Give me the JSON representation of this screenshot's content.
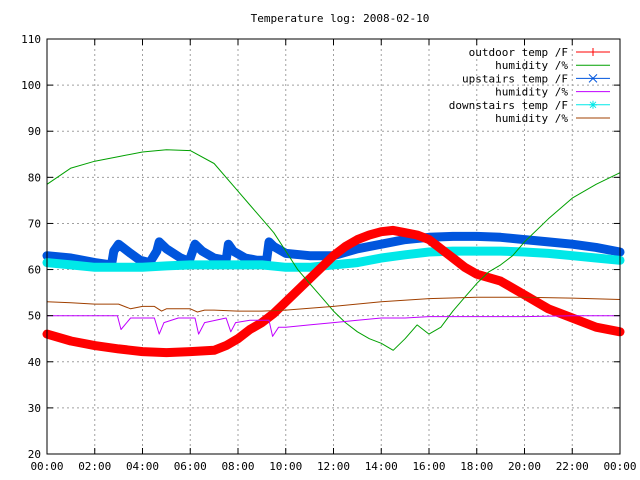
{
  "chart_data": {
    "type": "line",
    "title": "Temperature log: 2008-02-10",
    "xlabel": "",
    "ylabel": "",
    "ylim": [
      20,
      110
    ],
    "xlim_hours": [
      0,
      24
    ],
    "grid": true,
    "legend_position": "top-right",
    "y_ticks": [
      "20",
      "30",
      "40",
      "50",
      "60",
      "70",
      "80",
      "90",
      "100",
      "110"
    ],
    "x_ticks": [
      "00:00",
      "02:00",
      "04:00",
      "06:00",
      "08:00",
      "10:00",
      "12:00",
      "14:00",
      "16:00",
      "18:00",
      "20:00",
      "22:00",
      "00:00"
    ],
    "series": [
      {
        "name": "outdoor temp /F",
        "color": "#ff0000",
        "marker": "plus",
        "x": [
          0,
          1,
          2,
          3,
          4,
          5,
          6,
          7,
          7.5,
          8,
          8.5,
          9,
          9.5,
          10,
          10.5,
          11,
          11.5,
          12,
          12.5,
          13,
          13.5,
          14,
          14.5,
          15,
          15.5,
          16,
          16.5,
          17,
          17.5,
          18,
          19,
          20,
          21,
          22,
          23,
          24
        ],
        "y": [
          46,
          44.5,
          43.5,
          42.8,
          42.2,
          42,
          42.2,
          42.5,
          43.5,
          45,
          47,
          48.5,
          50.5,
          53,
          55.5,
          58,
          60.5,
          63,
          65,
          66.5,
          67.5,
          68.2,
          68.5,
          68,
          67.5,
          66.5,
          64.5,
          62.5,
          60.5,
          59,
          57.5,
          54.5,
          51.5,
          49.5,
          47.5,
          46.5
        ]
      },
      {
        "name": "humidity /%",
        "color": "#00a000",
        "marker": "none",
        "x": [
          0,
          1,
          2,
          3,
          4,
          5,
          6,
          7,
          8,
          8.5,
          9,
          9.5,
          10,
          10.5,
          11,
          11.5,
          12,
          12.5,
          13,
          13.5,
          14,
          14.5,
          15,
          15.5,
          16,
          16.5,
          17,
          17.5,
          18,
          18.5,
          19,
          19.5,
          20,
          21,
          22,
          23,
          24
        ],
        "y": [
          78.5,
          82,
          83.5,
          84.5,
          85.5,
          86,
          85.8,
          83,
          77,
          74,
          71,
          68,
          64,
          60,
          57,
          54,
          51,
          48.5,
          46.5,
          45,
          44,
          42.5,
          45,
          48,
          46,
          47.5,
          51,
          54,
          57,
          59.5,
          61,
          63,
          66,
          71,
          75.5,
          78.5,
          81
        ]
      },
      {
        "name": "upstairs temp /F",
        "color": "#0055dd",
        "marker": "x",
        "x": [
          0,
          1,
          2,
          2.7,
          2.8,
          3,
          3.5,
          3.9,
          4.3,
          4.6,
          4.7,
          5,
          5.6,
          5.95,
          6.2,
          6.5,
          7,
          7.5,
          7.6,
          7.8,
          8.3,
          8.8,
          9.2,
          9.3,
          9.5,
          10,
          11,
          12,
          13,
          14,
          15,
          16,
          17,
          18,
          19,
          20,
          21,
          22,
          23,
          24
        ],
        "y": [
          63,
          62.5,
          61.5,
          61,
          64,
          65.5,
          63.5,
          62,
          61.5,
          64,
          66,
          64.5,
          62.5,
          61.8,
          65.5,
          64,
          62.5,
          62,
          65.5,
          64,
          62.5,
          62,
          62,
          66,
          65,
          63.5,
          63,
          63,
          64.5,
          65.5,
          66.5,
          67,
          67.2,
          67.2,
          67,
          66.5,
          66,
          65.5,
          64.8,
          63.8
        ]
      },
      {
        "name": "humidity /%",
        "color": "#c000ff",
        "marker": "none",
        "x": [
          0,
          2,
          2.95,
          3.1,
          3.5,
          4.5,
          4.7,
          4.9,
          5.5,
          6.2,
          6.35,
          6.6,
          7.5,
          7.7,
          7.9,
          8.5,
          9.3,
          9.45,
          9.7,
          10,
          11,
          12,
          13,
          14,
          15,
          16,
          18,
          20,
          22,
          24
        ],
        "y": [
          50,
          50,
          50,
          47,
          49.5,
          49.5,
          46,
          48.5,
          49.5,
          49.5,
          46,
          48.5,
          49.5,
          46.5,
          48.5,
          49,
          49,
          45.5,
          47.5,
          47.5,
          48,
          48.5,
          49,
          49.5,
          49.5,
          49.8,
          49.8,
          49.8,
          50,
          50
        ]
      },
      {
        "name": "downstairs temp /F",
        "color": "#00e8e8",
        "marker": "star",
        "x": [
          0,
          1,
          2,
          3,
          4,
          5,
          6,
          7,
          8,
          9,
          10,
          11,
          12,
          13,
          14,
          15,
          16,
          17,
          18,
          19,
          20,
          21,
          22,
          23,
          24
        ],
        "y": [
          61.5,
          61,
          60.5,
          60.5,
          60.5,
          60.8,
          61,
          61,
          61,
          61,
          60.5,
          60.5,
          61,
          61.5,
          62.5,
          63.2,
          63.8,
          64,
          64,
          64,
          63.8,
          63.5,
          63,
          62.5,
          62
        ]
      },
      {
        "name": "humidity /%",
        "color": "#a04000",
        "marker": "none",
        "x": [
          0,
          1,
          2,
          3,
          3.5,
          4,
          4.5,
          4.8,
          5,
          6,
          6.3,
          6.6,
          7,
          8,
          9,
          10,
          12,
          14,
          16,
          18,
          20,
          22,
          24
        ],
        "y": [
          53,
          52.8,
          52.5,
          52.5,
          51.5,
          52,
          52,
          51,
          51.5,
          51.5,
          50.8,
          51.2,
          51.2,
          51,
          51,
          51.2,
          52,
          53,
          53.7,
          54,
          54,
          53.8,
          53.5
        ]
      }
    ]
  }
}
